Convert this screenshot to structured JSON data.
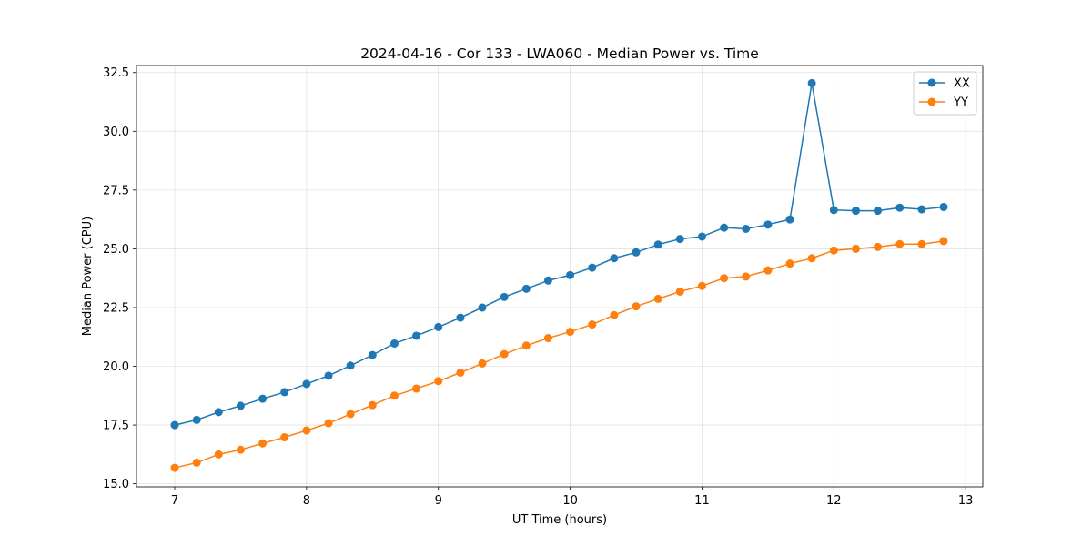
{
  "chart_data": {
    "type": "line",
    "title": "2024-04-16 - Cor 133 - LWA060 - Median Power vs. Time",
    "xlabel": "UT Time (hours)",
    "ylabel": "Median Power (CPU)",
    "xlim": [
      6.71,
      13.13
    ],
    "ylim": [
      14.87,
      32.8
    ],
    "xticks": [
      7,
      8,
      9,
      10,
      11,
      12,
      13
    ],
    "xtick_labels": [
      "7",
      "8",
      "9",
      "10",
      "11",
      "12",
      "13"
    ],
    "yticks": [
      15.0,
      17.5,
      20.0,
      22.5,
      25.0,
      27.5,
      30.0,
      32.5
    ],
    "ytick_labels": [
      "15.0",
      "17.5",
      "20.0",
      "22.5",
      "25.0",
      "27.5",
      "30.0",
      "32.5"
    ],
    "grid": true,
    "legend_position": "top-right",
    "x": [
      7.0,
      7.167,
      7.333,
      7.5,
      7.667,
      7.833,
      8.0,
      8.167,
      8.333,
      8.5,
      8.667,
      8.833,
      9.0,
      9.167,
      9.333,
      9.5,
      9.667,
      9.833,
      10.0,
      10.167,
      10.333,
      10.5,
      10.667,
      10.833,
      11.0,
      11.167,
      11.333,
      11.5,
      11.667,
      11.833,
      12.0,
      12.167,
      12.333,
      12.5,
      12.667,
      12.833
    ],
    "series": [
      {
        "name": "XX",
        "color": "#1f77b4",
        "values": [
          17.5,
          17.72,
          18.05,
          18.32,
          18.62,
          18.9,
          19.25,
          19.6,
          20.03,
          20.48,
          20.97,
          21.3,
          21.67,
          22.07,
          22.5,
          22.95,
          23.3,
          23.65,
          23.88,
          24.2,
          24.6,
          24.85,
          25.18,
          25.42,
          25.52,
          25.9,
          25.85,
          26.03,
          26.25,
          32.05,
          26.65,
          26.62,
          26.62,
          26.75,
          26.68,
          26.78
        ]
      },
      {
        "name": "YY",
        "color": "#ff7f0e",
        "values": [
          15.68,
          15.9,
          16.25,
          16.45,
          16.72,
          16.98,
          17.27,
          17.58,
          17.97,
          18.35,
          18.75,
          19.05,
          19.37,
          19.73,
          20.12,
          20.52,
          20.88,
          21.2,
          21.47,
          21.78,
          22.18,
          22.55,
          22.87,
          23.18,
          23.42,
          23.75,
          23.82,
          24.08,
          24.37,
          24.6,
          24.93,
          25.0,
          25.08,
          25.2,
          25.2,
          25.33
        ]
      }
    ]
  }
}
